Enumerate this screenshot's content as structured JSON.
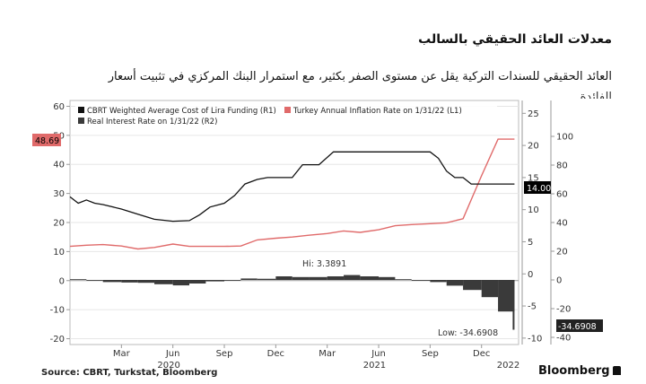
{
  "header": {
    "title": "معدلات العائد الحقيقي بالسالب",
    "subtitle": "العائد الحقيقي للسندات التركية يقل عن مستوى الصفر بكثير، مع استمرار البنك المركزي في تثبيت أسعار",
    "subtitle_cut": "الفائدة"
  },
  "footer": {
    "source": "Source: CBRT, Turkstat, Bloomberg",
    "brand": "Bloomberg"
  },
  "chart_data": {
    "type": "line",
    "legend": [
      {
        "name": "CBRT Weighted Average Cost of Lira Funding (R1)",
        "color": "#111111"
      },
      {
        "name": "Turkey Annual Inflation Rate on 1/31/22 (L1)",
        "color": "#e06a6a"
      },
      {
        "name": "Real Interest Rate on 1/31/22 (R2)",
        "color": "#3a3a3a"
      }
    ],
    "x_labels": [
      "Mar",
      "Jun",
      "Sep",
      "Dec",
      "Mar",
      "Jun",
      "Sep",
      "Dec"
    ],
    "year_labels": [
      "2020",
      "2021",
      "2022"
    ],
    "x_range": [
      2019.92,
      2022.1
    ],
    "left_axis": {
      "ylim": [
        -22,
        62
      ],
      "ticks": [
        -20,
        -10,
        0,
        10,
        20,
        30,
        40,
        50,
        60
      ]
    },
    "right_axis_1": {
      "ylim": [
        -11,
        27
      ],
      "ticks": [
        -10,
        -5,
        0,
        5,
        10,
        15,
        20,
        25
      ]
    },
    "right_axis_2": {
      "ylim": [
        -45,
        125
      ],
      "ticks": [
        -40,
        -20,
        0,
        20,
        40,
        60,
        80,
        100
      ]
    },
    "annotations": {
      "hi_label": "Hi: 3.3891",
      "low_label": "Low: -34.6908",
      "inflation_last": "48.69",
      "funding_last": "14.00",
      "real_last": "-34.6908"
    },
    "series": [
      {
        "name": "Turkey Annual Inflation Rate on 1/31/22 (L1)",
        "axis": "left",
        "x": [
          2019.92,
          2020.0,
          2020.08,
          2020.17,
          2020.25,
          2020.33,
          2020.42,
          2020.5,
          2020.58,
          2020.67,
          2020.75,
          2020.83,
          2020.92,
          2021.0,
          2021.08,
          2021.17,
          2021.25,
          2021.33,
          2021.42,
          2021.5,
          2021.58,
          2021.67,
          2021.75,
          2021.83,
          2021.92,
          2022.0,
          2022.08
        ],
        "values": [
          11.8,
          12.2,
          12.4,
          11.9,
          10.9,
          11.4,
          12.6,
          11.8,
          11.8,
          11.8,
          11.9,
          14.0,
          14.6,
          15.0,
          15.6,
          16.2,
          17.1,
          16.6,
          17.5,
          18.9,
          19.3,
          19.6,
          19.9,
          21.3,
          36.1,
          48.7,
          48.7
        ]
      },
      {
        "name": "CBRT Weighted Average Cost of Lira Funding (R1)",
        "axis": "right1",
        "x": [
          2019.92,
          2019.96,
          2020.0,
          2020.04,
          2020.08,
          2020.17,
          2020.25,
          2020.33,
          2020.42,
          2020.5,
          2020.55,
          2020.6,
          2020.67,
          2020.72,
          2020.77,
          2020.83,
          2020.88,
          2020.93,
          2021.0,
          2021.05,
          2021.13,
          2021.2,
          2021.25,
          2021.33,
          2021.42,
          2021.5,
          2021.58,
          2021.67,
          2021.71,
          2021.75,
          2021.79,
          2021.83,
          2021.87,
          2021.92,
          2022.0,
          2022.08
        ],
        "values": [
          12.0,
          11.0,
          11.5,
          11.0,
          10.8,
          10.1,
          9.3,
          8.5,
          8.2,
          8.3,
          9.2,
          10.4,
          11.0,
          12.2,
          14.0,
          14.7,
          15.0,
          15.0,
          15.0,
          17.0,
          17.0,
          19.0,
          19.0,
          19.0,
          19.0,
          19.0,
          19.0,
          19.0,
          18.0,
          16.0,
          15.0,
          15.0,
          14.0,
          14.0,
          14.0,
          14.0
        ]
      },
      {
        "name": "Real Interest Rate on 1/31/22 (R2)",
        "axis": "right2",
        "type": "bar",
        "x": [
          2019.92,
          2020.0,
          2020.08,
          2020.17,
          2020.25,
          2020.33,
          2020.42,
          2020.5,
          2020.58,
          2020.67,
          2020.75,
          2020.83,
          2020.92,
          2021.0,
          2021.08,
          2021.17,
          2021.25,
          2021.33,
          2021.42,
          2021.5,
          2021.58,
          2021.67,
          2021.75,
          2021.83,
          2021.92,
          2022.0,
          2022.08
        ],
        "values": [
          0.5,
          -0.5,
          -1.5,
          -1.8,
          -2.0,
          -3.0,
          -3.8,
          -2.5,
          -1.0,
          -0.5,
          1.0,
          0.8,
          2.5,
          2.0,
          2.0,
          2.5,
          3.4,
          2.5,
          2.0,
          0.5,
          -0.5,
          -1.5,
          -4.0,
          -7.0,
          -12.0,
          -22.0,
          -34.7
        ]
      }
    ]
  }
}
